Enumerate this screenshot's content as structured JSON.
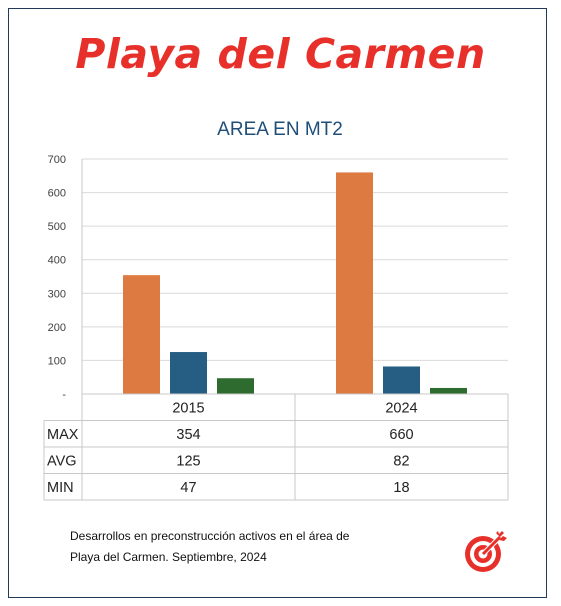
{
  "headline": "Playa del Carmen",
  "caption_line1": "Desarrollos en preconstrucción activos en el área de",
  "caption_line2": "Playa del Carmen. Septiembre, 2024",
  "logo_icon": "target-arrow-icon",
  "chart_data": {
    "type": "bar",
    "title": "AREA EN MT2",
    "xlabel": "",
    "ylabel": "",
    "categories": [
      "2015",
      "2024"
    ],
    "series": [
      {
        "name": "MAX",
        "values": [
          354,
          660
        ],
        "color": "#dd7a42"
      },
      {
        "name": "AVG",
        "values": [
          125,
          82
        ],
        "color": "#255e82"
      },
      {
        "name": "MIN",
        "values": [
          47,
          18
        ],
        "color": "#2e6b2e"
      }
    ],
    "ylim": [
      0,
      700
    ],
    "yticks": [
      "-",
      "100",
      "200",
      "300",
      "400",
      "500",
      "600",
      "700"
    ],
    "grid": true,
    "legend": "data-table-below"
  }
}
